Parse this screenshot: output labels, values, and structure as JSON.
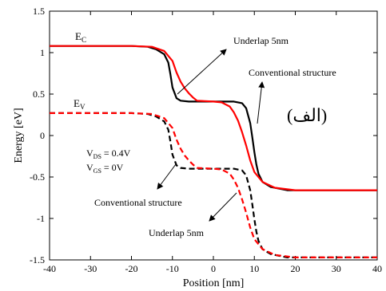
{
  "colors": {
    "red": "#ff0000",
    "black": "#000000"
  },
  "chart_data": {
    "type": "line",
    "xlabel": "Position [nm]",
    "ylabel": "Energy [eV]",
    "xlim": [
      -40,
      40
    ],
    "ylim": [
      -1.5,
      1.5
    ],
    "x_ticks": [
      -40,
      -30,
      -20,
      -10,
      0,
      10,
      20,
      30,
      40
    ],
    "y_ticks": [
      1.5,
      1,
      0.5,
      0,
      -0.5,
      -1,
      -1.5
    ],
    "x_tick_labels": [
      "-40",
      "-30",
      "-20",
      "-10",
      "0",
      "10",
      "20",
      "30",
      "40"
    ],
    "y_tick_labels": [
      "1.5",
      "1",
      "0.5",
      "0",
      "-0.5",
      "-1",
      "-1.5"
    ],
    "grid": false,
    "series": [
      {
        "id": "ec_conventional",
        "style": "solid",
        "color": "#000000",
        "x": [
          -40,
          -20,
          -16,
          -14,
          -12,
          -11,
          -10.5,
          -10,
          -9,
          -8,
          -6,
          0,
          5,
          7,
          8,
          9,
          9.5,
          10,
          10.5,
          11,
          12,
          14,
          18,
          40
        ],
        "y": [
          1.08,
          1.08,
          1.07,
          1.04,
          0.98,
          0.88,
          0.74,
          0.58,
          0.45,
          0.42,
          0.41,
          0.41,
          0.41,
          0.39,
          0.33,
          0.15,
          -0.02,
          -0.2,
          -0.35,
          -0.46,
          -0.56,
          -0.62,
          -0.66,
          -0.66
        ]
      },
      {
        "id": "ec_underlap",
        "style": "solid",
        "color": "#ff0000",
        "x": [
          -40,
          -20,
          -15,
          -12,
          -10,
          -9,
          -8,
          -7,
          -6,
          -5,
          -4,
          0,
          2,
          4,
          5,
          6,
          7,
          8,
          9,
          10,
          12,
          15,
          20,
          40
        ],
        "y": [
          1.08,
          1.08,
          1.07,
          1.02,
          0.9,
          0.76,
          0.65,
          0.57,
          0.51,
          0.46,
          0.42,
          0.41,
          0.4,
          0.35,
          0.28,
          0.18,
          0.04,
          -0.12,
          -0.3,
          -0.44,
          -0.56,
          -0.63,
          -0.66,
          -0.66
        ]
      },
      {
        "id": "ev_conventional",
        "style": "dashed",
        "color": "#000000",
        "x": [
          -40,
          -20,
          -16,
          -14,
          -12,
          -11,
          -10.5,
          -10,
          -9,
          -8,
          -6,
          0,
          5,
          7,
          8,
          9,
          9.5,
          10,
          10.5,
          11,
          12,
          14,
          18,
          40
        ],
        "y": [
          0.27,
          0.27,
          0.26,
          0.23,
          0.17,
          0.07,
          -0.07,
          -0.23,
          -0.36,
          -0.39,
          -0.4,
          -0.4,
          -0.4,
          -0.42,
          -0.48,
          -0.66,
          -0.83,
          -1.01,
          -1.16,
          -1.27,
          -1.37,
          -1.43,
          -1.47,
          -1.47
        ]
      },
      {
        "id": "ev_underlap",
        "style": "dashed",
        "color": "#ff0000",
        "x": [
          -40,
          -20,
          -15,
          -12,
          -10,
          -9,
          -8,
          -7,
          -6,
          -5,
          -4,
          0,
          2,
          4,
          5,
          6,
          7,
          8,
          9,
          10,
          12,
          15,
          20,
          40
        ],
        "y": [
          0.27,
          0.27,
          0.26,
          0.21,
          0.09,
          -0.05,
          -0.16,
          -0.24,
          -0.3,
          -0.35,
          -0.39,
          -0.4,
          -0.41,
          -0.46,
          -0.53,
          -0.63,
          -0.77,
          -0.93,
          -1.11,
          -1.25,
          -1.37,
          -1.44,
          -1.47,
          -1.47
        ]
      }
    ],
    "annotations": {
      "ec_label": {
        "main": "E",
        "sub": "C"
      },
      "ev_label": {
        "main": "E",
        "sub": "V"
      },
      "underlap_top": "Underlap 5nm",
      "conventional_top": "Conventional structure",
      "arabic": "(الف)",
      "vds": {
        "main": "V",
        "sub": "DS",
        "rest": " = 0.4V"
      },
      "vgs": {
        "main": "V",
        "sub": "GS",
        "rest": " = 0V"
      },
      "conventional_bottom": "Conventional structure",
      "underlap_bottom": "Underlap 5nm"
    }
  }
}
